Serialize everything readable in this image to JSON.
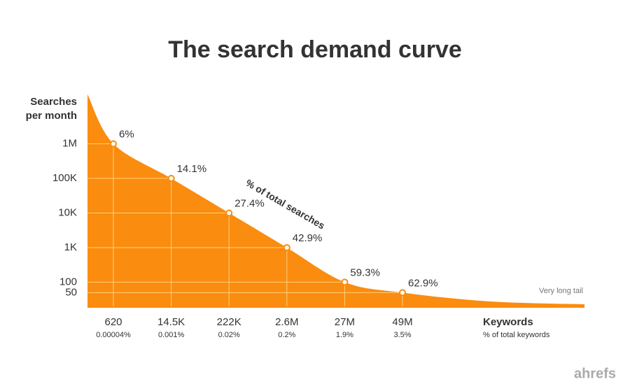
{
  "chart_data": {
    "type": "area",
    "title": "The search demand curve",
    "y_label": [
      "Searches",
      "per month"
    ],
    "x_label": "Keywords",
    "x_sublabel": "% of total keywords",
    "log_y": true,
    "color": "#fa8c0f",
    "ylim": [
      20,
      5000000
    ],
    "yticks": [
      {
        "value": 1000000,
        "label": "1M"
      },
      {
        "value": 100000,
        "label": "100K"
      },
      {
        "value": 10000,
        "label": "10K"
      },
      {
        "value": 1000,
        "label": "1K"
      },
      {
        "value": 100,
        "label": "100"
      },
      {
        "value": 50,
        "label": "50"
      }
    ],
    "categories": [
      "620",
      "14.5K",
      "222K",
      "2.6M",
      "27M",
      "49M"
    ],
    "category_sublabels": [
      "0.00004%",
      "0.001%",
      "0.02%",
      "0.2%",
      "1.9%",
      "3.5%"
    ],
    "values": [
      1000000,
      100000,
      10000,
      1000,
      100,
      50
    ],
    "point_labels": [
      "6%",
      "14.1%",
      "27.4%",
      "42.9%",
      "59.3%",
      "62.9%"
    ],
    "curve_annotation": "% of total searches",
    "tail_annotation": "Very long tail",
    "brand": "ahrefs"
  }
}
